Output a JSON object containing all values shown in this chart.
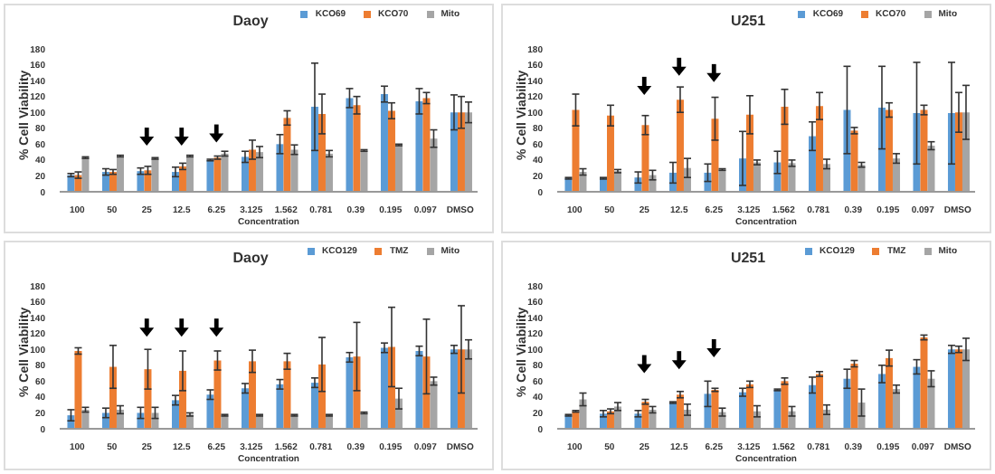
{
  "chart_data": [
    {
      "type": "bar",
      "title": "Daoy",
      "xlabel": "Concentration",
      "ylabel": "% Cell Viability",
      "categories": [
        "100",
        "50",
        "25",
        "12.5",
        "6.25",
        "3.125",
        "1.562",
        "0.781",
        "0.39",
        "0.195",
        "0.097",
        "DMSO"
      ],
      "ylim": [
        0,
        180
      ],
      "yticks": [
        0,
        20,
        40,
        60,
        80,
        100,
        120,
        140,
        160,
        180
      ],
      "legend": "top right",
      "series": [
        {
          "name": "KCO69",
          "color": "#5b9bd5",
          "values": [
            21,
            25,
            26,
            25,
            40,
            44,
            60,
            107,
            118,
            123,
            114,
            100
          ],
          "errors": [
            2,
            4,
            4,
            6,
            1,
            7,
            12,
            55,
            12,
            10,
            16,
            22
          ]
        },
        {
          "name": "KCO70",
          "color": "#ed7d31",
          "values": [
            21,
            25,
            27,
            32,
            43,
            53,
            93,
            98,
            109,
            102,
            118,
            100
          ],
          "errors": [
            4,
            3,
            5,
            4,
            2,
            12,
            9,
            25,
            11,
            10,
            7,
            20
          ]
        },
        {
          "name": "Mito",
          "color": "#a5a5a5",
          "values": [
            43,
            45,
            42,
            45,
            48,
            50,
            53,
            48,
            52,
            59,
            67,
            100
          ],
          "errors": [
            1,
            1,
            1,
            1,
            3,
            7,
            6,
            4,
            1,
            1,
            11,
            13
          ]
        }
      ]
    },
    {
      "type": "bar",
      "title": "U251",
      "xlabel": "Concentration",
      "ylabel": "% Cell Viability",
      "categories": [
        "100",
        "50",
        "25",
        "12.5",
        "6.25",
        "3.125",
        "1.562",
        "0.781",
        "0.39",
        "0.195",
        "0.097",
        "DMSO"
      ],
      "ylim": [
        0,
        180
      ],
      "yticks": [
        0,
        20,
        40,
        60,
        80,
        100,
        120,
        140,
        160,
        180
      ],
      "legend": "top right",
      "series": [
        {
          "name": "KCO69",
          "color": "#5b9bd5",
          "values": [
            17,
            17,
            18,
            24,
            24,
            42,
            37,
            70,
            103,
            106,
            99,
            99
          ],
          "errors": [
            1,
            1,
            7,
            13,
            11,
            34,
            14,
            18,
            55,
            52,
            64,
            64
          ]
        },
        {
          "name": "KCO70",
          "color": "#ed7d31",
          "values": [
            103,
            96,
            84,
            116,
            92,
            97,
            107,
            108,
            77,
            103,
            103,
            100
          ],
          "errors": [
            20,
            13,
            12,
            16,
            27,
            24,
            22,
            17,
            4,
            9,
            6,
            25
          ]
        },
        {
          "name": "Mito",
          "color": "#a5a5a5",
          "values": [
            25,
            26,
            21,
            30,
            28,
            37,
            36,
            35,
            34,
            42,
            58,
            100
          ],
          "errors": [
            4,
            2,
            6,
            12,
            1,
            3,
            4,
            6,
            3,
            6,
            5,
            34
          ]
        }
      ]
    },
    {
      "type": "bar",
      "title": "Daoy",
      "xlabel": "Concentration",
      "ylabel": "% Cell Viability",
      "categories": [
        "100",
        "50",
        "25",
        "12.5",
        "6.25",
        "3.125",
        "1.562",
        "0.781",
        "0.39",
        "0.195",
        "0.097",
        "DMSO"
      ],
      "ylim": [
        0,
        180
      ],
      "yticks": [
        0,
        20,
        40,
        60,
        80,
        100,
        120,
        140,
        160,
        180
      ],
      "legend": "top right",
      "series": [
        {
          "name": "KCO129",
          "color": "#5b9bd5",
          "values": [
            17,
            20,
            20,
            36,
            43,
            51,
            56,
            58,
            90,
            102,
            98,
            100
          ],
          "errors": [
            7,
            6,
            7,
            6,
            6,
            6,
            6,
            6,
            6,
            6,
            6,
            5
          ]
        },
        {
          "name": "TMZ",
          "color": "#ed7d31",
          "values": [
            98,
            78,
            75,
            73,
            86,
            85,
            85,
            81,
            91,
            103,
            91,
            100
          ],
          "errors": [
            4,
            27,
            25,
            25,
            12,
            14,
            10,
            34,
            43,
            50,
            47,
            55
          ]
        },
        {
          "name": "Mito",
          "color": "#a5a5a5",
          "values": [
            24,
            24,
            20,
            18,
            17,
            17,
            17,
            17,
            20,
            38,
            60,
            100
          ],
          "errors": [
            3,
            5,
            7,
            2,
            1,
            1,
            1,
            1,
            1,
            13,
            5,
            12
          ]
        }
      ]
    },
    {
      "type": "bar",
      "title": "U251",
      "xlabel": "Concentration",
      "ylabel": "% Cell Viability",
      "categories": [
        "100",
        "50",
        "25",
        "12.5",
        "6.25",
        "3.125",
        "1.562",
        "0.781",
        "0.39",
        "0.195",
        "0.097",
        "DMSO"
      ],
      "ylim": [
        0,
        180
      ],
      "yticks": [
        0,
        20,
        40,
        60,
        80,
        100,
        120,
        140,
        160,
        180
      ],
      "legend": "top right",
      "series": [
        {
          "name": "KCO129",
          "color": "#5b9bd5",
          "values": [
            17,
            19,
            19,
            33,
            44,
            46,
            49,
            55,
            63,
            69,
            78,
            100
          ],
          "errors": [
            1,
            4,
            4,
            1,
            16,
            5,
            1,
            10,
            12,
            11,
            9,
            5
          ]
        },
        {
          "name": "TMZ",
          "color": "#ed7d31",
          "values": [
            22,
            22,
            34,
            43,
            49,
            56,
            60,
            69,
            82,
            89,
            115,
            100
          ],
          "errors": [
            1,
            3,
            3,
            4,
            2,
            4,
            4,
            3,
            4,
            10,
            3,
            4
          ]
        },
        {
          "name": "Mito",
          "color": "#a5a5a5",
          "values": [
            37,
            28,
            24,
            24,
            21,
            22,
            22,
            24,
            33,
            50,
            63,
            100
          ],
          "errors": [
            8,
            5,
            4,
            7,
            5,
            7,
            6,
            6,
            17,
            5,
            10,
            14
          ]
        }
      ]
    }
  ]
}
